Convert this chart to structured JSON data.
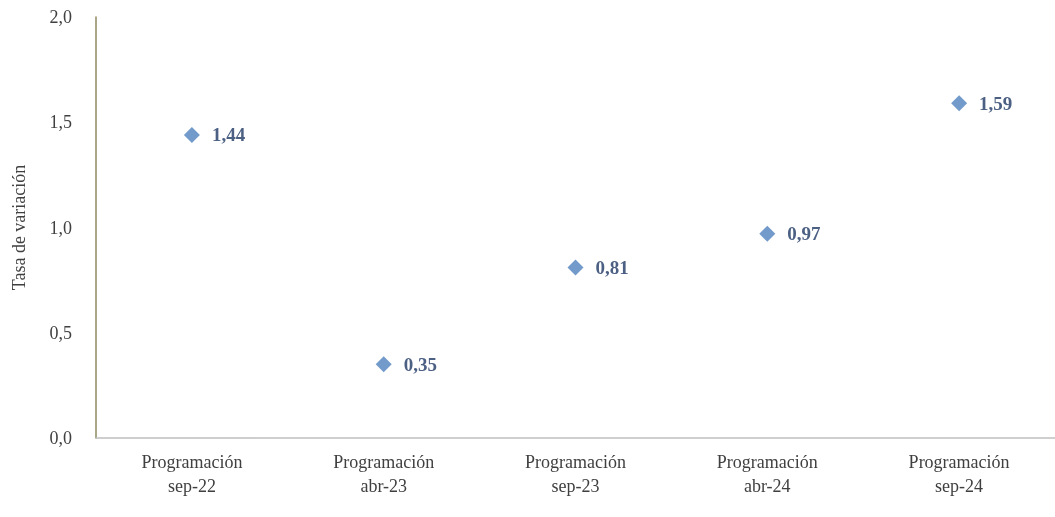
{
  "chart_data": {
    "type": "scatter",
    "ylabel": "Tasa de variación",
    "categories": [
      "Programación\nsep-22",
      "Programación\nabr-23",
      "Programación\nsep-23",
      "Programación\nabr-24",
      "Programación\nsep-24"
    ],
    "series": [
      {
        "color": "#4f81bd",
        "values": [
          1.44,
          0.35,
          0.81,
          0.97,
          1.59
        ],
        "value_labels": [
          "1,44",
          "0,35",
          "0,81",
          "0,97",
          "1,59"
        ]
      }
    ],
    "ylim": [
      0,
      2
    ],
    "yticks": [
      {
        "value": 0,
        "label": "0,0"
      },
      {
        "value": 0.5,
        "label": "0,5"
      },
      {
        "value": 1,
        "label": "1,0"
      },
      {
        "value": 1.5,
        "label": "1,5"
      },
      {
        "value": 2,
        "label": "2,0"
      }
    ],
    "marker": "diamond",
    "grid": false
  }
}
